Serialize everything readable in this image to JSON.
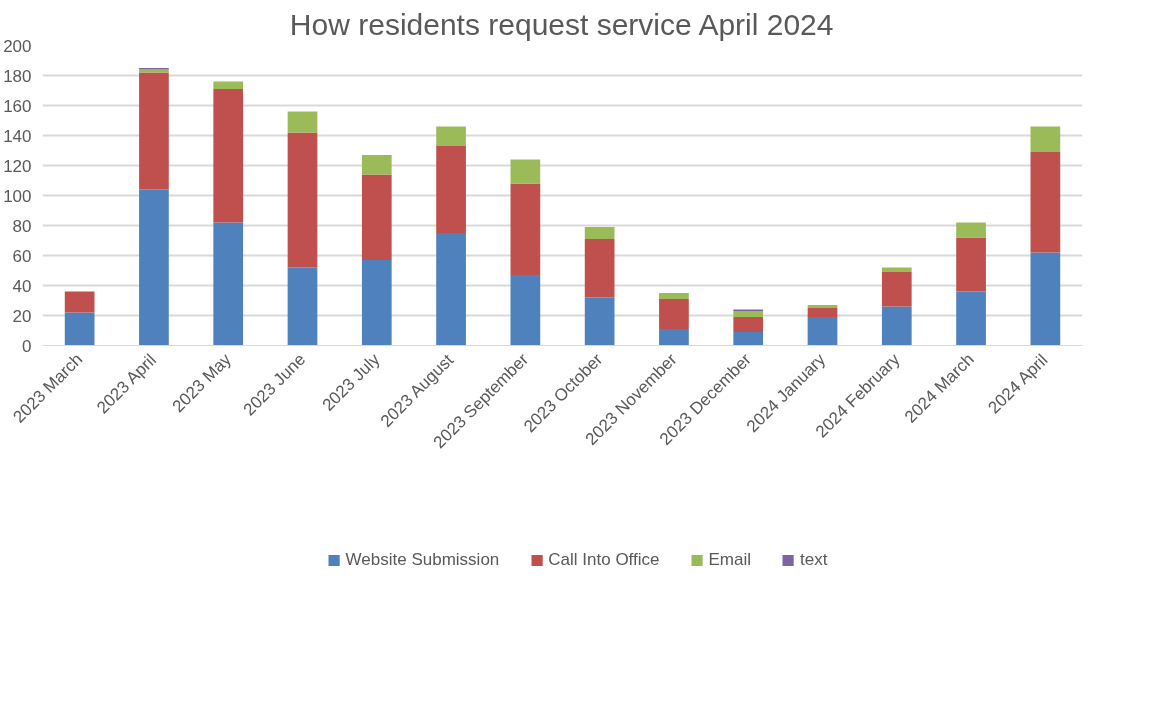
{
  "chart_data": {
    "type": "bar",
    "title": "How residents request service April 2024",
    "categories": [
      "2023 March",
      "2023 April",
      "2023 May",
      "2023 June",
      "2023 July",
      "2023 August",
      "2023 September",
      "2023 October",
      "2023 November",
      "2023 December",
      "2024 January",
      "2024 February",
      "2024 March",
      "2024 April"
    ],
    "stacked": true,
    "series": [
      {
        "name": "Website Submission",
        "color": "#4f81bd",
        "values": [
          22,
          104,
          82,
          52,
          57,
          75,
          47,
          32,
          11,
          9,
          19,
          26,
          36,
          62
        ]
      },
      {
        "name": "Call Into Office",
        "color": "#c0504d",
        "values": [
          14,
          78,
          89,
          90,
          57,
          58,
          61,
          39,
          20,
          10,
          6,
          23,
          36,
          67
        ]
      },
      {
        "name": "Email",
        "color": "#9bbb59",
        "values": [
          0,
          2,
          5,
          14,
          13,
          13,
          16,
          8,
          4,
          4,
          2,
          3,
          10,
          17
        ]
      },
      {
        "name": "text",
        "color": "#8064a2",
        "values": [
          0,
          1,
          0,
          0,
          0,
          0,
          0,
          0,
          0,
          1,
          0,
          0,
          0,
          0
        ]
      }
    ],
    "ylim": [
      0,
      200
    ],
    "yticks": [
      0,
      20,
      40,
      60,
      80,
      100,
      120,
      140,
      160,
      180,
      200
    ],
    "grid": "y",
    "legend": "bottom"
  }
}
